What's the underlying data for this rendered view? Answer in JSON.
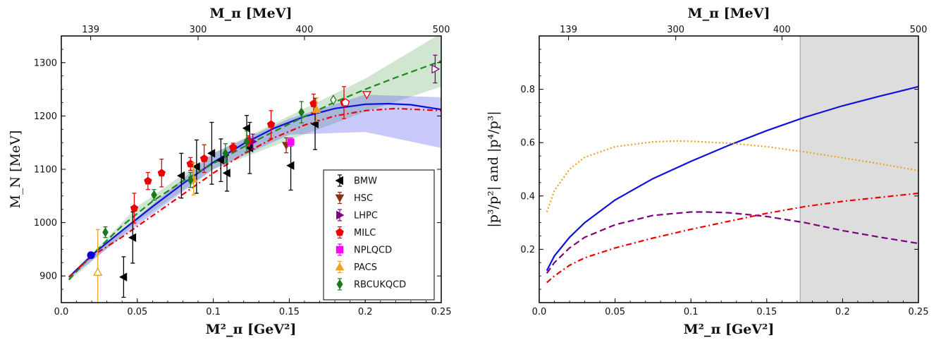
{
  "chart_data": [
    {
      "type": "scatter",
      "xlabel": "M²_π [GeV²]",
      "ylabel": "M_N [MeV]",
      "top_xlabel": "M_π [MeV]",
      "xlim": [
        0,
        0.25
      ],
      "ylim": [
        850,
        1350
      ],
      "x_ticks": [
        0,
        0.05,
        0.1,
        0.15,
        0.2,
        0.25
      ],
      "x_tick_labels": [
        "0.0",
        "0.05",
        "0.1",
        "0.15",
        "0.2",
        "0.25"
      ],
      "y_ticks": [
        900,
        1000,
        1100,
        1200,
        1300
      ],
      "y_tick_labels": [
        "900",
        "1000",
        "1100",
        "1200",
        "1300"
      ],
      "top_ticks_mpi2": [
        0.01932,
        0.09,
        0.16,
        0.25
      ],
      "top_tick_labels": [
        "139",
        "300",
        "400",
        "500"
      ],
      "legend_position": "lower-right",
      "physical_point": {
        "x": 0.0195,
        "y": 939,
        "color": "#0000dd"
      },
      "series": [
        {
          "name": "BMW",
          "marker": "triangle-left",
          "color": "#000000",
          "points": [
            {
              "x": 0.041,
              "y": 898,
              "err": 38
            },
            {
              "x": 0.047,
              "y": 972,
              "err": 48
            },
            {
              "x": 0.079,
              "y": 1088,
              "err": 42
            },
            {
              "x": 0.089,
              "y": 1105,
              "err": 50
            },
            {
              "x": 0.099,
              "y": 1130,
              "err": 58
            },
            {
              "x": 0.105,
              "y": 1117,
              "err": 40
            },
            {
              "x": 0.109,
              "y": 1093,
              "err": 34
            },
            {
              "x": 0.122,
              "y": 1177,
              "err": 24
            },
            {
              "x": 0.124,
              "y": 1140,
              "err": 48
            },
            {
              "x": 0.151,
              "y": 1107,
              "err": 46
            },
            {
              "x": 0.167,
              "y": 1185,
              "err": 48
            }
          ]
        },
        {
          "name": "HSC",
          "marker": "triangle-down",
          "color": "#8b2e16",
          "points": [
            {
              "x": 0.148,
              "y": 1145,
              "err": 14
            }
          ]
        },
        {
          "name": "LHPC",
          "marker": "triangle-right",
          "color": "#800080",
          "points": [
            {
              "x": 0.126,
              "y": 1152,
              "err": 14
            },
            {
              "x": 0.246,
              "y": 1288,
              "err": 26
            }
          ]
        },
        {
          "name": "MILC",
          "marker": "pentagon",
          "color": "#ee0000",
          "points": [
            {
              "x": 0.048,
              "y": 1027,
              "err": 28
            },
            {
              "x": 0.057,
              "y": 1078,
              "err": 16
            },
            {
              "x": 0.066,
              "y": 1093,
              "err": 26
            },
            {
              "x": 0.085,
              "y": 1110,
              "err": 12
            },
            {
              "x": 0.094,
              "y": 1120,
              "err": 26
            },
            {
              "x": 0.113,
              "y": 1141,
              "err": 8
            },
            {
              "x": 0.123,
              "y": 1153,
              "err": 10
            },
            {
              "x": 0.138,
              "y": 1184,
              "err": 26
            },
            {
              "x": 0.166,
              "y": 1223,
              "err": 18
            },
            {
              "x": 0.186,
              "y": 1225,
              "err": 30
            }
          ]
        },
        {
          "name": "NPLQCD",
          "marker": "square",
          "color": "#ff00ff",
          "points": [
            {
              "x": 0.151,
              "y": 1151,
              "err": 8
            }
          ]
        },
        {
          "name": "PACS",
          "marker": "triangle-up",
          "color": "#f0a020",
          "points": [
            {
              "x": 0.024,
              "y": 907,
              "err": 80
            },
            {
              "x": 0.087,
              "y": 1082,
              "err": 30
            },
            {
              "x": 0.168,
              "y": 1212,
              "err": 22
            }
          ]
        },
        {
          "name": "RBCUKQCD",
          "marker": "diamond",
          "color": "#1a7a1a",
          "points": [
            {
              "x": 0.029,
              "y": 982,
              "err": 10
            },
            {
              "x": 0.061,
              "y": 1052,
              "err": 10
            },
            {
              "x": 0.085,
              "y": 1080,
              "err": 14
            },
            {
              "x": 0.108,
              "y": 1130,
              "err": 18
            },
            {
              "x": 0.122,
              "y": 1152,
              "err": 20
            },
            {
              "x": 0.158,
              "y": 1207,
              "err": 20
            }
          ]
        }
      ],
      "open_points": [
        {
          "x": 0.024,
          "y": 907,
          "marker": "triangle-up",
          "color": "#f0a020"
        },
        {
          "x": 0.179,
          "y": 1230,
          "marker": "diamond",
          "color": "#1a7a1a"
        },
        {
          "x": 0.187,
          "y": 1225,
          "marker": "pentagon",
          "color": "#ee0000"
        },
        {
          "x": 0.201,
          "y": 1240,
          "marker": "triangle-down",
          "color": "#ee0000"
        },
        {
          "x": 0.246,
          "y": 1288,
          "marker": "triangle-right",
          "color": "#800080"
        }
      ],
      "curves": [
        {
          "style": "solid",
          "color": "#1010dd",
          "x": [
            0.005,
            0.02,
            0.04,
            0.06,
            0.08,
            0.1,
            0.12,
            0.14,
            0.16,
            0.18,
            0.2,
            0.215,
            0.23,
            0.25
          ],
          "y": [
            898,
            939,
            985,
            1030,
            1073,
            1113,
            1148,
            1177,
            1199,
            1214,
            1222,
            1223,
            1221,
            1212
          ]
        },
        {
          "style": "dashed",
          "color": "#1a8a1a",
          "x": [
            0.005,
            0.02,
            0.04,
            0.06,
            0.08,
            0.1,
            0.12,
            0.14,
            0.16,
            0.18,
            0.2,
            0.22,
            0.25
          ],
          "y": [
            893,
            939,
            994,
            1040,
            1078,
            1111,
            1142,
            1171,
            1199,
            1226,
            1250,
            1272,
            1303
          ]
        },
        {
          "style": "dashdot",
          "color": "#ee0000",
          "x": [
            0.005,
            0.02,
            0.04,
            0.06,
            0.08,
            0.1,
            0.12,
            0.14,
            0.16,
            0.18,
            0.2,
            0.22,
            0.25
          ],
          "y": [
            898,
            937,
            973,
            1013,
            1053,
            1093,
            1129,
            1159,
            1183,
            1200,
            1210,
            1214,
            1210
          ]
        }
      ],
      "bands": [
        {
          "color": "#2e8b2e",
          "x": [
            0.005,
            0.05,
            0.1,
            0.15,
            0.2,
            0.25
          ],
          "lower": [
            890,
            1002,
            1100,
            1155,
            1208,
            1255
          ],
          "upper": [
            897,
            1030,
            1130,
            1200,
            1270,
            1355
          ]
        },
        {
          "color": "#3c3cf0",
          "x": [
            0.005,
            0.05,
            0.1,
            0.15,
            0.2,
            0.25
          ],
          "lower": [
            895,
            995,
            1100,
            1165,
            1170,
            1140
          ],
          "upper": [
            900,
            1010,
            1130,
            1195,
            1240,
            1235
          ]
        }
      ]
    },
    {
      "type": "line",
      "xlabel": "M²_π [GeV²]",
      "ylabel": "|p³/p²| and |p⁴/p³|",
      "top_xlabel": "M_π [MeV]",
      "xlim": [
        0,
        0.25
      ],
      "ylim": [
        0,
        1.0
      ],
      "x_ticks": [
        0,
        0.05,
        0.1,
        0.15,
        0.2,
        0.25
      ],
      "x_tick_labels": [
        "0.0",
        "0.05",
        "0.1",
        "0.15",
        "0.2",
        "0.25"
      ],
      "y_ticks": [
        0.2,
        0.4,
        0.6,
        0.8
      ],
      "y_tick_labels": [
        "0.2",
        "0.4",
        "0.6",
        "0.8"
      ],
      "top_ticks_mpi2": [
        0.01932,
        0.09,
        0.16,
        0.25
      ],
      "top_tick_labels": [
        "139",
        "300",
        "400",
        "500"
      ],
      "shaded_region": {
        "x_from": 0.172,
        "x_to": 0.25,
        "color": "#dddddd"
      },
      "series": [
        {
          "style": "solid",
          "color": "#1010dd",
          "x": [
            0.005,
            0.01,
            0.02,
            0.03,
            0.05,
            0.075,
            0.1,
            0.125,
            0.15,
            0.175,
            0.2,
            0.225,
            0.25
          ],
          "y": [
            0.12,
            0.175,
            0.245,
            0.3,
            0.385,
            0.465,
            0.53,
            0.59,
            0.645,
            0.695,
            0.738,
            0.775,
            0.81
          ]
        },
        {
          "style": "dashed",
          "color": "#800080",
          "x": [
            0.005,
            0.01,
            0.02,
            0.03,
            0.05,
            0.075,
            0.1,
            0.11,
            0.125,
            0.15,
            0.175,
            0.2,
            0.225,
            0.25
          ],
          "y": [
            0.11,
            0.15,
            0.205,
            0.245,
            0.292,
            0.327,
            0.34,
            0.34,
            0.337,
            0.323,
            0.3,
            0.27,
            0.245,
            0.222
          ]
        },
        {
          "style": "dotted",
          "color": "#f0a020",
          "x": [
            0.005,
            0.01,
            0.02,
            0.03,
            0.05,
            0.075,
            0.09,
            0.1,
            0.125,
            0.15,
            0.175,
            0.2,
            0.225,
            0.25
          ],
          "y": [
            0.34,
            0.42,
            0.5,
            0.545,
            0.585,
            0.603,
            0.606,
            0.605,
            0.598,
            0.585,
            0.565,
            0.543,
            0.52,
            0.495
          ]
        },
        {
          "style": "dashdot",
          "color": "#ee0000",
          "x": [
            0.005,
            0.01,
            0.02,
            0.03,
            0.05,
            0.075,
            0.1,
            0.125,
            0.15,
            0.175,
            0.2,
            0.225,
            0.25
          ],
          "y": [
            0.075,
            0.1,
            0.14,
            0.168,
            0.205,
            0.242,
            0.275,
            0.305,
            0.335,
            0.36,
            0.38,
            0.395,
            0.41
          ]
        }
      ]
    }
  ]
}
